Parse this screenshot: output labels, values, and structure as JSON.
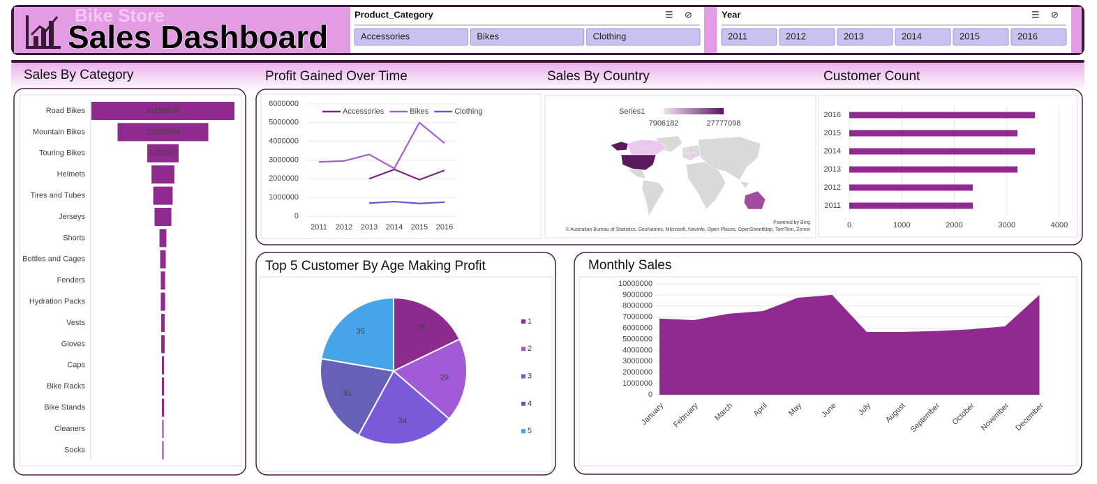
{
  "header": {
    "subtitle": "Bike Store",
    "title": "Sales Dashboard"
  },
  "slicers": [
    {
      "title": "Product_Category",
      "items": [
        "Accessories",
        "Bikes",
        "Clothing"
      ]
    },
    {
      "title": "Year",
      "items": [
        "2011",
        "2012",
        "2013",
        "2014",
        "2015",
        "2016"
      ]
    }
  ],
  "chart_data": [
    {
      "type": "funnel",
      "title": "Sales By Category",
      "color": "#912a8f",
      "categories": [
        "Road Bikes",
        "Mountain Bikes",
        "Touring Bikes",
        "Helmets",
        "Tires and Tubes",
        "Jerseys",
        "Shorts",
        "Bottles and Cages",
        "Fenders",
        "Hydration Packs",
        "Vests",
        "Gloves",
        "Caps",
        "Bike Racks",
        "Bike Stands",
        "Cleaners",
        "Socks"
      ],
      "values": [
        33150708,
        21020794,
        7262982,
        5300000,
        4500000,
        3900000,
        1600000,
        1300000,
        1000000,
        1000000,
        800000,
        800000,
        500000,
        500000,
        500000,
        300000,
        300000
      ]
    },
    {
      "type": "line",
      "title": "Profit Gained Over Time",
      "categories": [
        "2011",
        "2012",
        "2013",
        "2014",
        "2015",
        "2016"
      ],
      "series": [
        {
          "name": "Accessories",
          "color": "#7b2580",
          "values": [
            null,
            null,
            2000000,
            2500000,
            1950000,
            2450000
          ]
        },
        {
          "name": "Bikes",
          "color": "#a15fd1",
          "values": [
            2900000,
            2950000,
            3300000,
            2550000,
            5000000,
            3900000
          ]
        },
        {
          "name": "Clothing",
          "color": "#6f54cf",
          "values": [
            null,
            null,
            700000,
            780000,
            680000,
            750000
          ]
        }
      ],
      "ylim": [
        0,
        6000000
      ],
      "yticks": [
        0,
        1000000,
        2000000,
        3000000,
        4000000,
        5000000,
        6000000
      ],
      "grid": true
    },
    {
      "type": "map",
      "title": "Sales By Country",
      "legend_title": "Series1",
      "range_labels": [
        7906182,
        27777098
      ],
      "colors": [
        "#f3dcf5",
        "#5a1560"
      ],
      "powered_by": "Powered by Bing",
      "attribution": "© Australian Bureau of Statistics, GeoNames, Microsoft, Navinfo, Open Places, OpenStreetMap, TomTom, Zenrin"
    },
    {
      "type": "hbar",
      "title": "Customer Count",
      "color": "#912a8f",
      "categories": [
        "2011",
        "2012",
        "2013",
        "2014",
        "2015",
        "2016"
      ],
      "values": [
        2352,
        2352,
        3203,
        3535,
        3203,
        3535
      ],
      "xlim": [
        0,
        4000
      ],
      "xticks": [
        0,
        1000,
        2000,
        3000,
        4000
      ],
      "grid": true
    },
    {
      "type": "pie",
      "title": "Top 5 Customer By Age Making Profit",
      "categories": [
        "1",
        "2",
        "3",
        "4",
        "5"
      ],
      "values": [
        28,
        29,
        34,
        31,
        35
      ],
      "colors": [
        "#8e2a8e",
        "#a35ad6",
        "#7a5ad8",
        "#6660b8",
        "#46a4e8"
      ]
    },
    {
      "type": "area",
      "title": "Monthly Sales",
      "color": "#912a8f",
      "categories": [
        "January",
        "February",
        "March",
        "April",
        "May",
        "June",
        "July",
        "August",
        "September",
        "October",
        "November",
        "December"
      ],
      "values": [
        6860000,
        6730000,
        7300000,
        7550000,
        8740000,
        9000000,
        5660000,
        5660000,
        5750000,
        5900000,
        6160000,
        9000000
      ],
      "ylim": [
        0,
        10000000
      ],
      "yticks": [
        0,
        1000000,
        2000000,
        3000000,
        4000000,
        5000000,
        6000000,
        7000000,
        8000000,
        9000000,
        10000000
      ],
      "grid": true
    }
  ]
}
